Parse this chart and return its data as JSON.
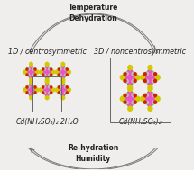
{
  "bg_color": "#f0eeec",
  "top_label1": "Temperature",
  "top_label2": "Dehydration",
  "bottom_label1": "Re-hydration",
  "bottom_label2": "Humidity",
  "left_title": "1D / centrosymmetric",
  "right_title": "3D / noncentrosymmetric",
  "left_formula": "Cd(NH₂SO₃)₂·2H₂O",
  "right_formula": "Cd(NH₂SO₃)₂",
  "arrow_color": "#777777",
  "crystal_pink": "#e855c8",
  "crystal_yellow": "#d4c800",
  "crystal_red": "#cc2200",
  "crystal_gray": "#aaaaaa",
  "text_color": "#222222",
  "title_fontsize": 5.8,
  "label_fontsize": 5.5,
  "formula_fontsize": 5.5
}
